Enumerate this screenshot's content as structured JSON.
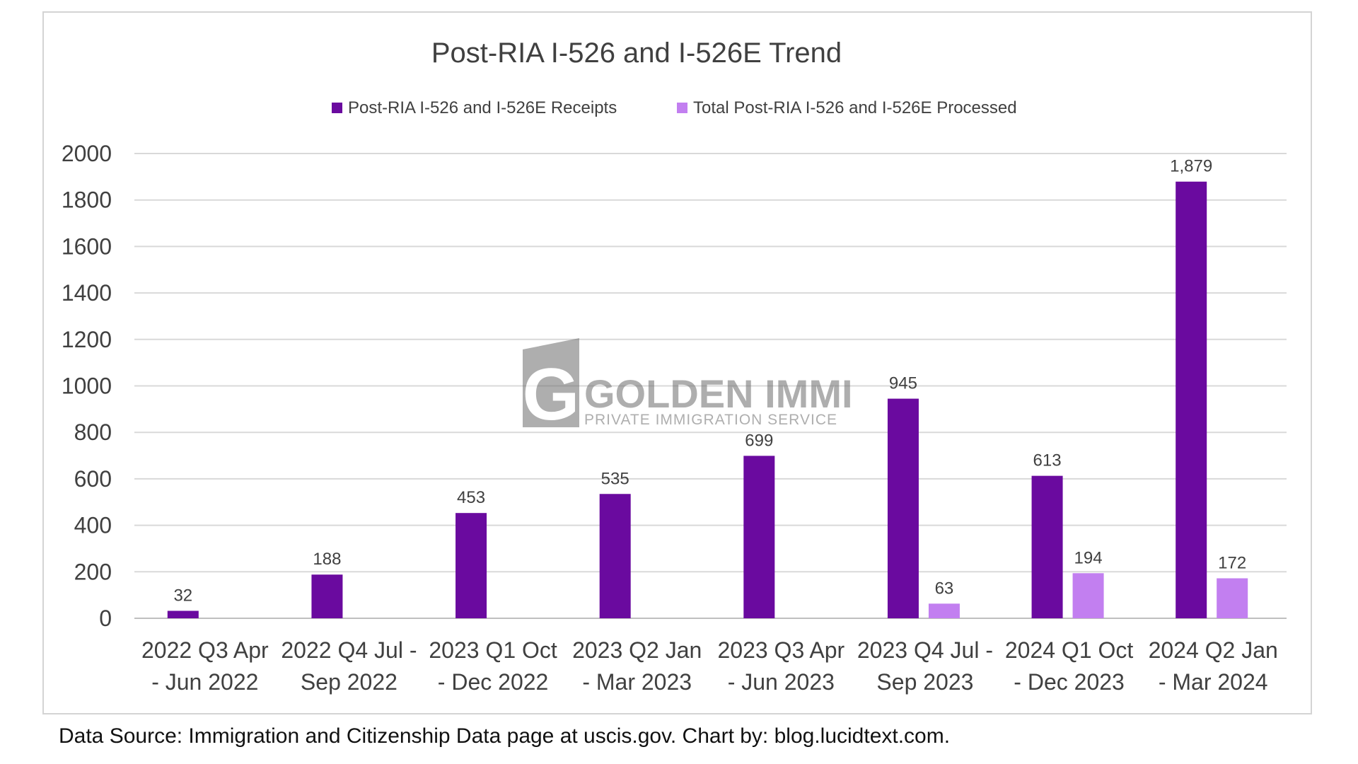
{
  "chart_data": {
    "type": "bar",
    "title": "Post-RIA I-526 and I-526E Trend",
    "categories": [
      [
        "2022 Q3 Apr",
        "- Jun 2022"
      ],
      [
        "2022 Q4 Jul -",
        "Sep 2022"
      ],
      [
        "2023 Q1 Oct",
        "- Dec 2022"
      ],
      [
        "2023 Q2 Jan",
        "- Mar 2023"
      ],
      [
        "2023 Q3 Apr",
        "- Jun 2023"
      ],
      [
        "2023 Q4 Jul -",
        "Sep 2023"
      ],
      [
        "2024 Q1 Oct",
        "- Dec 2023"
      ],
      [
        "2024 Q2 Jan",
        "- Mar 2024"
      ]
    ],
    "series": [
      {
        "name": "Post-RIA I-526 and I-526E Receipts",
        "color": "#6a0a9f",
        "values": [
          32,
          188,
          453,
          535,
          699,
          945,
          613,
          1879
        ],
        "labels": [
          "32",
          "188",
          "453",
          "535",
          "699",
          "945",
          "613",
          "1,879"
        ]
      },
      {
        "name": "Total Post-RIA I-526 and I-526E Processed",
        "color": "#c27ff0",
        "values": [
          null,
          null,
          null,
          null,
          null,
          63,
          194,
          172
        ],
        "labels": [
          "",
          "",
          "",
          "",
          "",
          "63",
          "194",
          "172"
        ]
      }
    ],
    "yticks": [
      0,
      200,
      400,
      600,
      800,
      1000,
      1200,
      1400,
      1600,
      1800,
      2000
    ],
    "ylim": [
      0,
      2000
    ],
    "grid": true,
    "legend_position": "top-center"
  },
  "watermark": {
    "brand": "GOLDEN IMMI",
    "tagline": "PRIVATE IMMIGRATION SERVICE"
  },
  "source_note": "Data Source: Immigration and Citizenship Data page at uscis.gov. Chart by: blog.lucidtext.com."
}
